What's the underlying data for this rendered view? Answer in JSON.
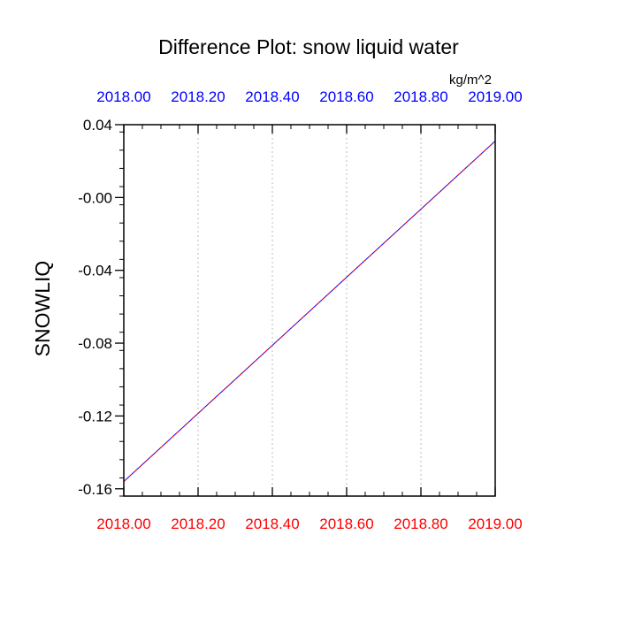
{
  "chart_data": {
    "type": "line",
    "title": "Difference Plot: snow liquid water",
    "units": "kg/m^2",
    "ylabel": "SNOWLIQ",
    "xlabel": "",
    "xlim": [
      2018.0,
      2019.0
    ],
    "ylim": [
      -0.164,
      0.04
    ],
    "x_ticks": [
      "2018.00",
      "2018.20",
      "2018.40",
      "2018.60",
      "2018.80",
      "2019.00"
    ],
    "x_tick_values": [
      2018.0,
      2018.2,
      2018.4,
      2018.6,
      2018.8,
      2019.0
    ],
    "y_ticks": [
      "0.04",
      "-0.00",
      "-0.04",
      "-0.08",
      "-0.12",
      "-0.16"
    ],
    "y_tick_values": [
      0.04,
      0.0,
      -0.04,
      -0.08,
      -0.12,
      -0.16
    ],
    "grid": "vertical dotted",
    "series": [
      {
        "x": [
          2018.0,
          2019.0
        ],
        "values": [
          -0.156,
          0.031
        ],
        "color": "#0000ff"
      },
      {
        "x": [
          2018.0,
          2019.0
        ],
        "values": [
          -0.156,
          0.031
        ],
        "color": "#ff0000",
        "dash": "dashed"
      }
    ],
    "bottom_axis_color": "#ff0000",
    "top_axis_color": "#0000ff"
  }
}
